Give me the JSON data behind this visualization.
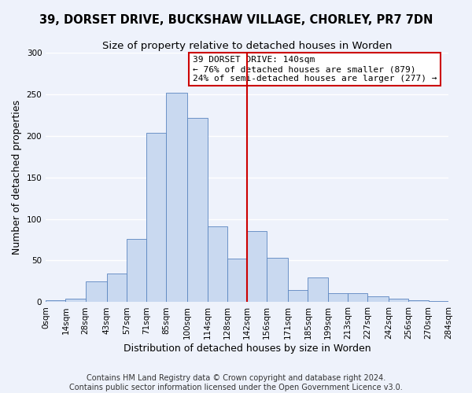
{
  "title": "39, DORSET DRIVE, BUCKSHAW VILLAGE, CHORLEY, PR7 7DN",
  "subtitle": "Size of property relative to detached houses in Worden",
  "xlabel": "Distribution of detached houses by size in Worden",
  "ylabel": "Number of detached properties",
  "bin_labels": [
    "0sqm",
    "14sqm",
    "28sqm",
    "43sqm",
    "57sqm",
    "71sqm",
    "85sqm",
    "100sqm",
    "114sqm",
    "128sqm",
    "142sqm",
    "156sqm",
    "171sqm",
    "185sqm",
    "199sqm",
    "213sqm",
    "227sqm",
    "242sqm",
    "256sqm",
    "270sqm",
    "284sqm"
  ],
  "bin_edges": [
    0,
    14,
    28,
    43,
    57,
    71,
    85,
    100,
    114,
    128,
    142,
    156,
    171,
    185,
    199,
    213,
    227,
    242,
    256,
    270,
    284
  ],
  "bar_heights": [
    2,
    4,
    25,
    34,
    76,
    203,
    252,
    221,
    91,
    52,
    85,
    53,
    15,
    30,
    11,
    11,
    7,
    4,
    2,
    1
  ],
  "bar_color": "#c9d9f0",
  "bar_edge_color": "#5a85c0",
  "vline_x": 142,
  "vline_color": "#cc0000",
  "ylim": [
    0,
    300
  ],
  "yticks": [
    0,
    50,
    100,
    150,
    200,
    250,
    300
  ],
  "annotation_box_title": "39 DORSET DRIVE: 140sqm",
  "annotation_line1": "← 76% of detached houses are smaller (879)",
  "annotation_line2": "24% of semi-detached houses are larger (277) →",
  "annotation_box_edge_color": "#cc0000",
  "footer_line1": "Contains HM Land Registry data © Crown copyright and database right 2024.",
  "footer_line2": "Contains public sector information licensed under the Open Government Licence v3.0.",
  "title_fontsize": 10.5,
  "subtitle_fontsize": 9.5,
  "axis_label_fontsize": 9,
  "tick_fontsize": 7.5,
  "annotation_fontsize": 8,
  "footer_fontsize": 7,
  "background_color": "#eef2fb"
}
